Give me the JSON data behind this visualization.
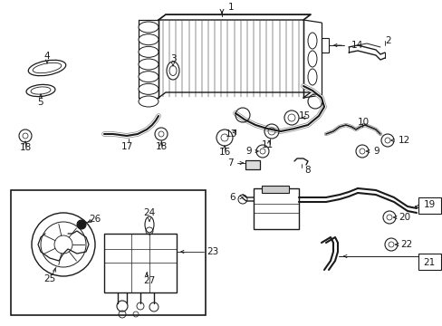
{
  "bg_color": "#ffffff",
  "fig_width": 4.89,
  "fig_height": 3.6,
  "dpi": 100,
  "line_color": "#1a1a1a",
  "label_color": "#000000",
  "label_fontsize": 7.5
}
